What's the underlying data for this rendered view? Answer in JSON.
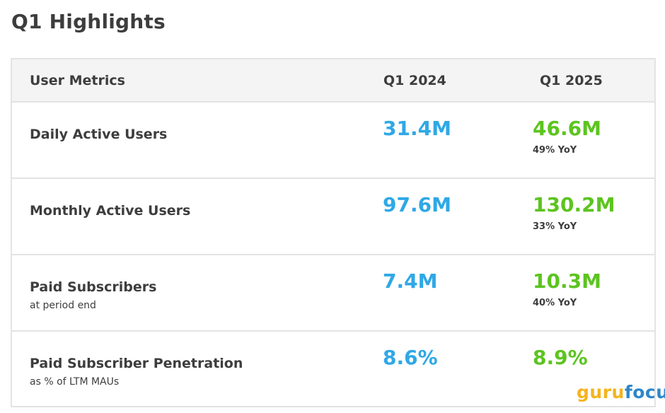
{
  "title": "Q1 Highlights",
  "table": {
    "headers": [
      "User Metrics",
      "Q1 2024",
      "Q1 2025"
    ],
    "rows": [
      {
        "metric": "Daily Active Users",
        "sub": "",
        "q1_2024": "31.4M",
        "q1_2025": "46.6M",
        "yoy": "49% YoY"
      },
      {
        "metric": "Monthly Active Users",
        "sub": "",
        "q1_2024": "97.6M",
        "q1_2025": "130.2M",
        "yoy": "33% YoY"
      },
      {
        "metric": "Paid Subscribers",
        "sub": "at period end",
        "q1_2024": "7.4M",
        "q1_2025": "10.3M",
        "yoy": "40% YoY"
      },
      {
        "metric": "Paid Subscriber Penetration",
        "sub": "as % of LTM MAUs",
        "q1_2024": "8.6%",
        "q1_2025": "8.9%",
        "yoy": ""
      }
    ]
  },
  "logo": {
    "part1": "guru",
    "part2": "focus"
  },
  "colors": {
    "q1_2024": "#2fa8e6",
    "q1_2025": "#5cc41f",
    "text": "#3d3d3d"
  }
}
